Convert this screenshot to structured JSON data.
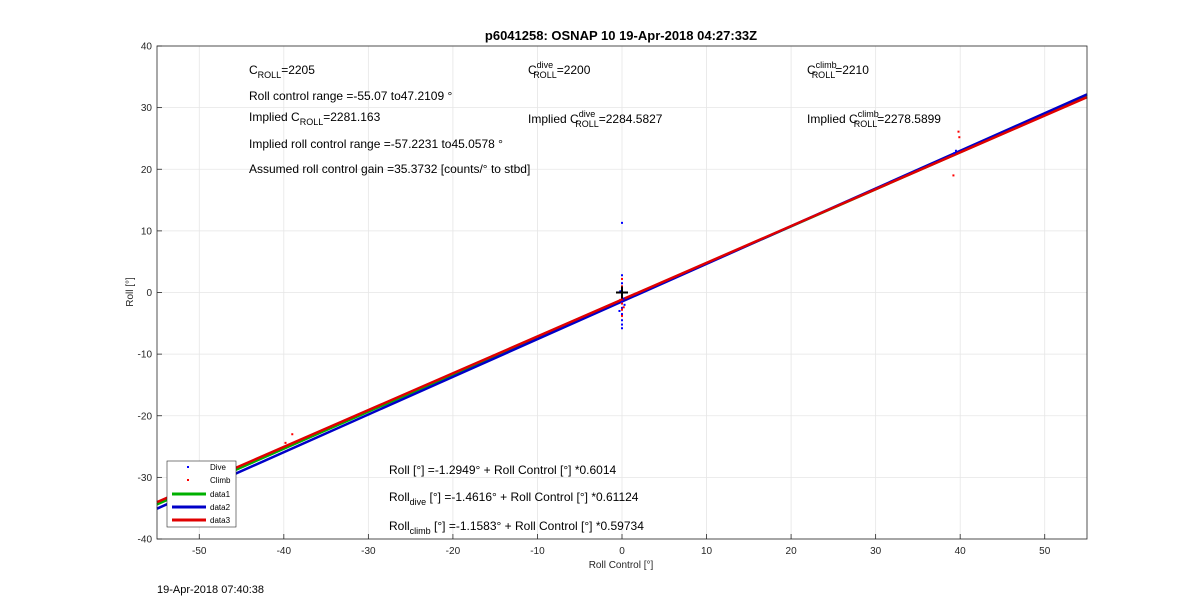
{
  "chart_data": {
    "type": "scatter",
    "title": "p6041258: OSNAP 10 19-Apr-2018 04:27:33Z",
    "xlabel": "Roll Control [°]",
    "ylabel": "Roll [°]",
    "xlim": [
      -55,
      55
    ],
    "ylim": [
      -40,
      40
    ],
    "xticks": [
      -50,
      -40,
      -30,
      -20,
      -10,
      0,
      10,
      20,
      30,
      40,
      50
    ],
    "yticks": [
      -40,
      -30,
      -20,
      -10,
      0,
      10,
      20,
      30,
      40
    ],
    "grid": true,
    "legend_position": "bottom-left",
    "series": [
      {
        "name": "Dive",
        "kind": "points",
        "color": "#0000ff",
        "points": [
          [
            0,
            11.3
          ],
          [
            0,
            2.8
          ],
          [
            0,
            1.5
          ],
          [
            0,
            0.5
          ],
          [
            0,
            -0.5
          ],
          [
            0,
            -1.5
          ],
          [
            0,
            -2.5
          ],
          [
            0,
            -3.5
          ],
          [
            0,
            -4.5
          ],
          [
            0,
            -5.2
          ],
          [
            0,
            -5.8
          ],
          [
            -0.3,
            -3.0
          ],
          [
            0.3,
            -2.0
          ],
          [
            0.2,
            -1.0
          ],
          [
            -0.2,
            0.2
          ],
          [
            39.5,
            23.0
          ],
          [
            39.3,
            22.6
          ]
        ]
      },
      {
        "name": "Climb",
        "kind": "points",
        "color": "#ff0000",
        "points": [
          [
            -39.8,
            -24.4
          ],
          [
            -39.0,
            -23.0
          ],
          [
            0,
            2.2
          ],
          [
            0,
            1.0
          ],
          [
            0,
            0.0
          ],
          [
            0,
            -0.8
          ],
          [
            0,
            -1.8
          ],
          [
            0,
            -2.8
          ],
          [
            0,
            -3.8
          ],
          [
            -0.2,
            -1.2
          ],
          [
            0.2,
            -2.4
          ],
          [
            39.8,
            26.1
          ],
          [
            39.9,
            25.2
          ],
          [
            39.2,
            19.0
          ]
        ]
      },
      {
        "name": "data1",
        "kind": "line",
        "color": "#00b000",
        "intercept": -1.2949,
        "slope": 0.6014
      },
      {
        "name": "data2",
        "kind": "line",
        "color": "#0000c8",
        "intercept": -1.4616,
        "slope": 0.61124
      },
      {
        "name": "data3",
        "kind": "line",
        "color": "#e00000",
        "intercept": -1.1583,
        "slope": 0.59734
      }
    ],
    "origin_marker": [
      0,
      0
    ],
    "annotations": {
      "c_roll": "=2205",
      "roll_range": "Roll control range =-55.07 to47.2109 °",
      "implied_c_roll": "=2281.163",
      "implied_range": "Implied roll control range =-57.2231 to45.0578 °",
      "gain": "Assumed roll control gain =35.3732 [counts/° to stbd]",
      "c_dive": "=2200",
      "implied_c_dive": "=2284.5827",
      "c_climb": "=2210",
      "implied_c_climb": "=2278.5899",
      "fit_all": " [°] =-1.2949° + Roll Control [°] *0.6014",
      "fit_dive": " [°] =-1.4616° + Roll Control [°] *0.61124",
      "fit_climb": " [°] =-1.1583° + Roll Control [°] *0.59734",
      "sym_C": "C",
      "sym_ROLL": "ROLL",
      "sym_Roll": "Roll",
      "word_Implied": "Implied",
      "word_dive": "dive",
      "word_climb": "climb"
    }
  },
  "footer": {
    "timestamp": "19-Apr-2018 07:40:38"
  }
}
